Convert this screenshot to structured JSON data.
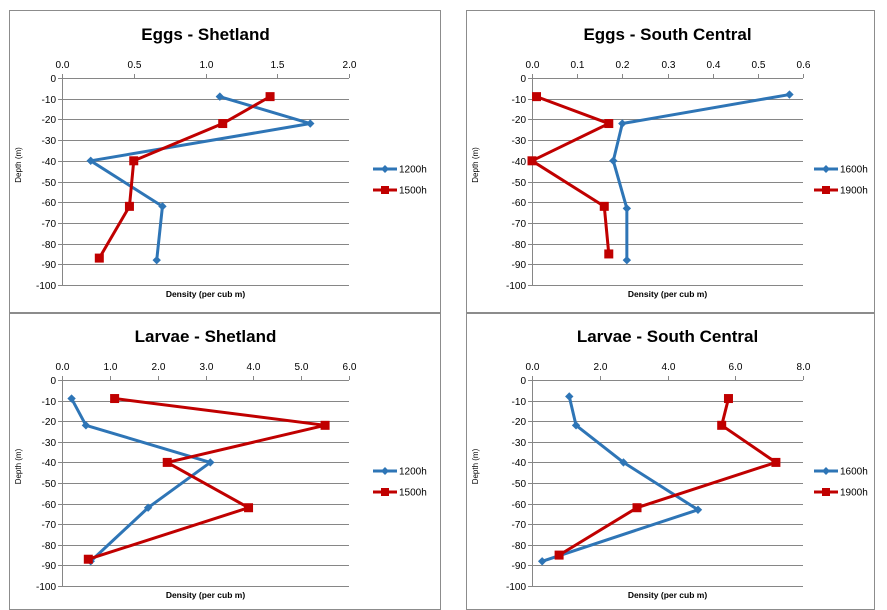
{
  "chart_data": [
    {
      "type": "line",
      "title": "Eggs - Shetland",
      "xlabel": "Density (per cub m)",
      "ylabel": "Depth (m)",
      "xlim": [
        0,
        2.0
      ],
      "ylim": [
        -100,
        0
      ],
      "xticks": [
        "0.0",
        "0.5",
        "1.0",
        "1.5",
        "2.0"
      ],
      "xtick_values": [
        0,
        0.5,
        1.0,
        1.5,
        2.0
      ],
      "yticks": [
        "0",
        "-10",
        "-20",
        "-30",
        "-40",
        "-50",
        "-60",
        "-70",
        "-80",
        "-90",
        "-100"
      ],
      "legend_position": "right",
      "series": [
        {
          "name": "1200h",
          "color": "#2e75b6",
          "marker": "diamond",
          "points": [
            [
              1.1,
              -9
            ],
            [
              1.73,
              -22
            ],
            [
              0.2,
              -40
            ],
            [
              0.7,
              -62
            ],
            [
              0.66,
              -88
            ]
          ]
        },
        {
          "name": "1500h",
          "color": "#c00000",
          "marker": "square",
          "points": [
            [
              1.45,
              -9
            ],
            [
              1.12,
              -22
            ],
            [
              0.5,
              -40
            ],
            [
              0.47,
              -62
            ],
            [
              0.26,
              -87
            ]
          ]
        }
      ]
    },
    {
      "type": "line",
      "title": "Eggs - South Central",
      "xlabel": "Density (per cub m)",
      "ylabel": "Depth (m)",
      "xlim": [
        0,
        0.6
      ],
      "ylim": [
        -100,
        0
      ],
      "xticks": [
        "0.0",
        "0.1",
        "0.2",
        "0.3",
        "0.4",
        "0.5",
        "0.6"
      ],
      "xtick_values": [
        0,
        0.1,
        0.2,
        0.3,
        0.4,
        0.5,
        0.6
      ],
      "yticks": [
        "0",
        "-10",
        "-20",
        "-30",
        "-40",
        "-50",
        "-60",
        "-70",
        "-80",
        "-90",
        "-100"
      ],
      "legend_position": "right",
      "series": [
        {
          "name": "1600h",
          "color": "#2e75b6",
          "marker": "diamond",
          "points": [
            [
              0.57,
              -8
            ],
            [
              0.2,
              -22
            ],
            [
              0.18,
              -40
            ],
            [
              0.21,
              -63
            ],
            [
              0.21,
              -88
            ]
          ]
        },
        {
          "name": "1900h",
          "color": "#c00000",
          "marker": "square",
          "points": [
            [
              0.01,
              -9
            ],
            [
              0.17,
              -22
            ],
            [
              0.0,
              -40
            ],
            [
              0.16,
              -62
            ],
            [
              0.17,
              -85
            ]
          ]
        }
      ]
    },
    {
      "type": "line",
      "title": "Larvae - Shetland",
      "xlabel": "Density (per cub m)",
      "ylabel": "Depth (m)",
      "xlim": [
        0,
        6.0
      ],
      "ylim": [
        -100,
        0
      ],
      "xticks": [
        "0.0",
        "1.0",
        "2.0",
        "3.0",
        "4.0",
        "5.0",
        "6.0"
      ],
      "xtick_values": [
        0,
        1,
        2,
        3,
        4,
        5,
        6
      ],
      "yticks": [
        "0",
        "-10",
        "-20",
        "-30",
        "-40",
        "-50",
        "-60",
        "-70",
        "-80",
        "-90",
        "-100"
      ],
      "legend_position": "right",
      "series": [
        {
          "name": "1200h",
          "color": "#2e75b6",
          "marker": "diamond",
          "points": [
            [
              0.2,
              -9
            ],
            [
              0.5,
              -22
            ],
            [
              3.1,
              -40
            ],
            [
              1.8,
              -62
            ],
            [
              0.6,
              -88
            ]
          ]
        },
        {
          "name": "1500h",
          "color": "#c00000",
          "marker": "square",
          "points": [
            [
              1.1,
              -9
            ],
            [
              5.5,
              -22
            ],
            [
              2.2,
              -40
            ],
            [
              3.9,
              -62
            ],
            [
              0.55,
              -87
            ]
          ]
        }
      ]
    },
    {
      "type": "line",
      "title": "Larvae - South Central",
      "xlabel": "Density (per cub m)",
      "ylabel": "Depth (m)",
      "xlim": [
        0,
        8.0
      ],
      "ylim": [
        -100,
        0
      ],
      "xticks": [
        "0.0",
        "2.0",
        "4.0",
        "6.0",
        "8.0"
      ],
      "xtick_values": [
        0,
        2,
        4,
        6,
        8
      ],
      "yticks": [
        "0",
        "-10",
        "-20",
        "-30",
        "-40",
        "-50",
        "-60",
        "-70",
        "-80",
        "-90",
        "-100"
      ],
      "legend_position": "right",
      "series": [
        {
          "name": "1600h",
          "color": "#2e75b6",
          "marker": "diamond",
          "points": [
            [
              1.1,
              -8
            ],
            [
              1.3,
              -22
            ],
            [
              2.7,
              -40
            ],
            [
              4.9,
              -63
            ],
            [
              0.3,
              -88
            ]
          ]
        },
        {
          "name": "1900h",
          "color": "#c00000",
          "marker": "square",
          "points": [
            [
              5.8,
              -9
            ],
            [
              5.6,
              -22
            ],
            [
              7.2,
              -40
            ],
            [
              3.1,
              -62
            ],
            [
              0.8,
              -85
            ]
          ]
        }
      ]
    }
  ]
}
